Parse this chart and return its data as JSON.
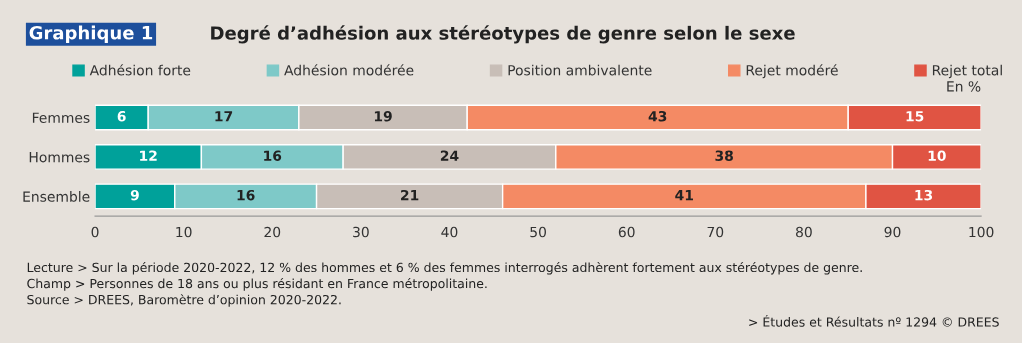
{
  "chart_data": {
    "type": "bar",
    "orientation": "horizontal",
    "stacked": true,
    "title": "Degré d’adhésion aux stéréotypes de genre selon le sexe",
    "categories": [
      "Femmes",
      "Hommes",
      "Ensemble"
    ],
    "series": [
      {
        "name": "Adhésion forte",
        "color": "#00a19a",
        "values": [
          6,
          12,
          9
        ]
      },
      {
        "name": "Adhésion modérée",
        "color": "#7ec9c8",
        "values": [
          17,
          16,
          16
        ]
      },
      {
        "name": "Position ambivalente",
        "color": "#c8beb7",
        "values": [
          19,
          24,
          21
        ]
      },
      {
        "name": "Rejet modéré",
        "color": "#f48a64",
        "values": [
          43,
          38,
          41
        ]
      },
      {
        "name": "Rejet total",
        "color": "#e05443",
        "values": [
          15,
          10,
          13
        ]
      }
    ],
    "xlim": [
      0,
      100
    ],
    "xticks": [
      0,
      10,
      20,
      30,
      40,
      50,
      60,
      70,
      80,
      90,
      100
    ],
    "data_labels": true,
    "grid": false,
    "legend": "top",
    "annotations": [
      "Graphique 1",
      "En %",
      "Lecture > Sur la période 2020-2022, 12 % des hommes et 6 % des femmes interrogés adhèrent fortement aux stéréotypes de genre.",
      "Champ > Personnes de 18 ans ou plus résidant en France métropolitaine.",
      "Source > DREES, Baromètre d’opinion 2020-2022.",
      "> Études et Résultats nº 1294 © DREES"
    ]
  }
}
